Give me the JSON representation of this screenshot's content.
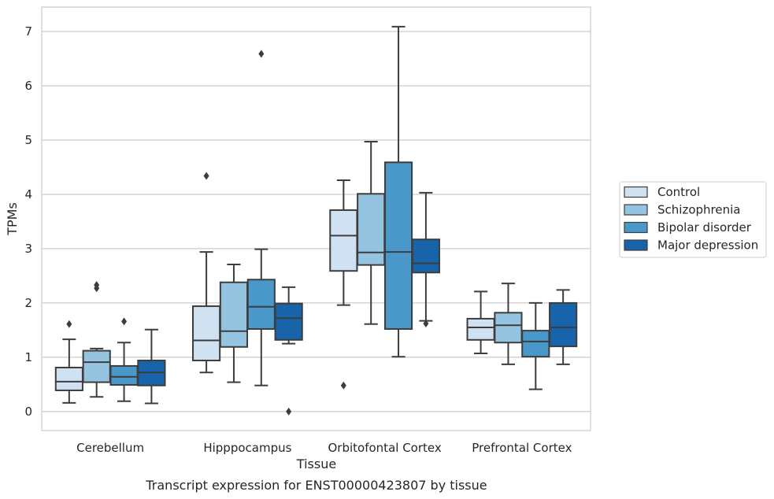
{
  "caption": "Transcript expression for ENST00000423807 by tissue",
  "chart_data": {
    "type": "box",
    "xlabel": "Tissue",
    "ylabel": "TPMs",
    "ylim": [
      -0.35,
      7.45
    ],
    "yticks": [
      0,
      1,
      2,
      3,
      4,
      5,
      6,
      7
    ],
    "grid": "horizontal",
    "legend_position": "right",
    "categories": [
      "Cerebellum",
      "Hipppocampus",
      "Orbitofontal Cortex",
      "Prefrontal Cortex"
    ],
    "series": [
      {
        "name": "Control",
        "color": "#d0e1f2",
        "boxes": [
          {
            "whisker_low": 0.16,
            "q1": 0.39,
            "median": 0.55,
            "q3": 0.81,
            "whisker_high": 1.33,
            "outliers": [
              1.61
            ]
          },
          {
            "whisker_low": 0.72,
            "q1": 0.94,
            "median": 1.31,
            "q3": 1.94,
            "whisker_high": 2.94,
            "outliers": [
              4.34
            ]
          },
          {
            "whisker_low": 1.96,
            "q1": 2.59,
            "median": 3.24,
            "q3": 3.71,
            "whisker_high": 4.26,
            "outliers": [
              0.48
            ]
          },
          {
            "whisker_low": 1.07,
            "q1": 1.32,
            "median": 1.55,
            "q3": 1.71,
            "whisker_high": 2.21,
            "outliers": []
          }
        ]
      },
      {
        "name": "Schizophrenia",
        "color": "#94c4df",
        "boxes": [
          {
            "whisker_low": 0.27,
            "q1": 0.54,
            "median": 0.91,
            "q3": 1.12,
            "whisker_high": 1.16,
            "outliers": [
              2.27,
              2.33
            ]
          },
          {
            "whisker_low": 0.54,
            "q1": 1.19,
            "median": 1.48,
            "q3": 2.38,
            "whisker_high": 2.71,
            "outliers": []
          },
          {
            "whisker_low": 1.61,
            "q1": 2.7,
            "median": 2.93,
            "q3": 4.01,
            "whisker_high": 4.97,
            "outliers": []
          },
          {
            "whisker_low": 0.87,
            "q1": 1.27,
            "median": 1.59,
            "q3": 1.82,
            "whisker_high": 2.36,
            "outliers": []
          }
        ]
      },
      {
        "name": "Bipolar disorder",
        "color": "#4a98c9",
        "boxes": [
          {
            "whisker_low": 0.19,
            "q1": 0.49,
            "median": 0.64,
            "q3": 0.84,
            "whisker_high": 1.27,
            "outliers": [
              1.66
            ]
          },
          {
            "whisker_low": 0.48,
            "q1": 1.52,
            "median": 1.93,
            "q3": 2.43,
            "whisker_high": 2.99,
            "outliers": [
              6.59
            ]
          },
          {
            "whisker_low": 1.01,
            "q1": 1.52,
            "median": 2.94,
            "q3": 4.59,
            "whisker_high": 7.09,
            "outliers": []
          },
          {
            "whisker_low": 0.41,
            "q1": 1.01,
            "median": 1.29,
            "q3": 1.49,
            "whisker_high": 2.0,
            "outliers": []
          }
        ]
      },
      {
        "name": "Major depression",
        "color": "#1764ab",
        "boxes": [
          {
            "whisker_low": 0.15,
            "q1": 0.48,
            "median": 0.72,
            "q3": 0.94,
            "whisker_high": 1.51,
            "outliers": []
          },
          {
            "whisker_low": 1.25,
            "q1": 1.32,
            "median": 1.72,
            "q3": 1.99,
            "whisker_high": 2.29,
            "outliers": [
              0.0
            ]
          },
          {
            "whisker_low": 1.67,
            "q1": 2.56,
            "median": 2.73,
            "q3": 3.17,
            "whisker_high": 4.03,
            "outliers": [
              1.62
            ]
          },
          {
            "whisker_low": 0.87,
            "q1": 1.2,
            "median": 1.55,
            "q3": 2.0,
            "whisker_high": 2.24,
            "outliers": []
          }
        ]
      }
    ]
  }
}
